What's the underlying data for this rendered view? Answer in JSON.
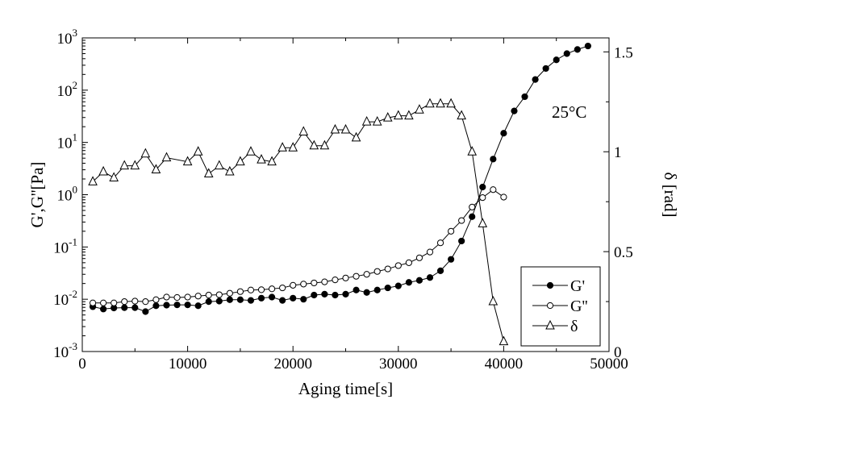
{
  "chart_data": {
    "type": "line",
    "x_axis": {
      "label": "Aging time[s]",
      "range": [
        0,
        50000
      ],
      "ticks": [
        0,
        10000,
        20000,
        30000,
        40000,
        50000
      ],
      "tick_labels": [
        "0",
        "10000",
        "20000",
        "30000",
        "40000",
        "50000"
      ]
    },
    "y_left": {
      "label": "G',G''[Pa]",
      "scale": "log",
      "range": [
        0.001,
        1000
      ],
      "ticks": [
        0.001,
        0.01,
        0.1,
        1,
        10,
        100,
        1000
      ],
      "tick_labels": [
        {
          "base": "10",
          "exp": "-3"
        },
        {
          "base": "10",
          "exp": "-2"
        },
        {
          "base": "10",
          "exp": "-1"
        },
        {
          "base": "10",
          "exp": "0"
        },
        {
          "base": "10",
          "exp": "1"
        },
        {
          "base": "10",
          "exp": "2"
        },
        {
          "base": "10",
          "exp": "3"
        }
      ]
    },
    "y_right": {
      "label": "δ [rad]",
      "scale": "linear",
      "range": [
        0,
        1.57
      ],
      "ticks": [
        0,
        0.5,
        1,
        1.5
      ],
      "tick_labels": [
        "0",
        "0.5",
        "1",
        "1.5"
      ]
    },
    "annotation": "25°C",
    "legend": {
      "placement": "bottom-right",
      "entries": [
        "G'",
        "G''",
        "δ"
      ]
    },
    "series": [
      {
        "name": "G'",
        "axis": "left",
        "marker": "filled-circle",
        "x": [
          1000,
          2000,
          3000,
          4000,
          5000,
          6000,
          7000,
          8000,
          9000,
          10000,
          11000,
          12000,
          13000,
          14000,
          15000,
          16000,
          17000,
          18000,
          19000,
          20000,
          21000,
          22000,
          23000,
          24000,
          25000,
          26000,
          27000,
          28000,
          29000,
          30000,
          31000,
          32000,
          33000,
          34000,
          35000,
          36000,
          37000,
          38000,
          39000,
          40000,
          41000,
          42000,
          43000,
          44000,
          45000,
          46000,
          47000,
          48000
        ],
        "y": [
          0.0072,
          0.0065,
          0.0068,
          0.0069,
          0.0069,
          0.0058,
          0.0075,
          0.0077,
          0.0078,
          0.0078,
          0.0075,
          0.009,
          0.0092,
          0.0098,
          0.0098,
          0.0095,
          0.0105,
          0.011,
          0.0095,
          0.0105,
          0.01,
          0.012,
          0.0125,
          0.012,
          0.0125,
          0.015,
          0.0135,
          0.015,
          0.0165,
          0.018,
          0.021,
          0.023,
          0.026,
          0.035,
          0.058,
          0.13,
          0.38,
          1.4,
          4.8,
          15,
          40,
          75,
          160,
          260,
          380,
          500,
          600,
          700
        ]
      },
      {
        "name": "G''",
        "axis": "left",
        "marker": "open-circle",
        "x": [
          1000,
          2000,
          3000,
          4000,
          5000,
          6000,
          7000,
          8000,
          9000,
          10000,
          11000,
          12000,
          13000,
          14000,
          15000,
          16000,
          17000,
          18000,
          19000,
          20000,
          21000,
          22000,
          23000,
          24000,
          25000,
          26000,
          27000,
          28000,
          29000,
          30000,
          31000,
          32000,
          33000,
          34000,
          35000,
          36000,
          37000,
          38000,
          39000,
          40000
        ],
        "y": [
          0.0085,
          0.0085,
          0.0085,
          0.009,
          0.0092,
          0.009,
          0.0098,
          0.011,
          0.0108,
          0.011,
          0.0115,
          0.012,
          0.0122,
          0.013,
          0.014,
          0.015,
          0.0152,
          0.0158,
          0.0165,
          0.0185,
          0.0195,
          0.0205,
          0.0215,
          0.0235,
          0.0255,
          0.0275,
          0.03,
          0.034,
          0.038,
          0.044,
          0.05,
          0.062,
          0.08,
          0.12,
          0.2,
          0.32,
          0.58,
          0.88,
          1.25,
          0.9
        ]
      },
      {
        "name": "δ",
        "axis": "right",
        "marker": "open-triangle",
        "x": [
          1000,
          2000,
          3000,
          4000,
          5000,
          6000,
          7000,
          8000,
          10000,
          11000,
          12000,
          13000,
          14000,
          15000,
          16000,
          17000,
          18000,
          19000,
          20000,
          21000,
          22000,
          23000,
          24000,
          25000,
          26000,
          27000,
          28000,
          29000,
          30000,
          31000,
          32000,
          33000,
          34000,
          35000,
          36000,
          37000,
          38000,
          39000,
          40000
        ],
        "y": [
          0.85,
          0.9,
          0.87,
          0.93,
          0.93,
          0.99,
          0.91,
          0.97,
          0.95,
          1.0,
          0.89,
          0.93,
          0.9,
          0.95,
          1.0,
          0.96,
          0.95,
          1.02,
          1.02,
          1.1,
          1.03,
          1.03,
          1.11,
          1.11,
          1.07,
          1.15,
          1.15,
          1.17,
          1.18,
          1.18,
          1.21,
          1.24,
          1.24,
          1.24,
          1.18,
          1.0,
          0.64,
          0.25,
          0.05
        ]
      }
    ]
  }
}
